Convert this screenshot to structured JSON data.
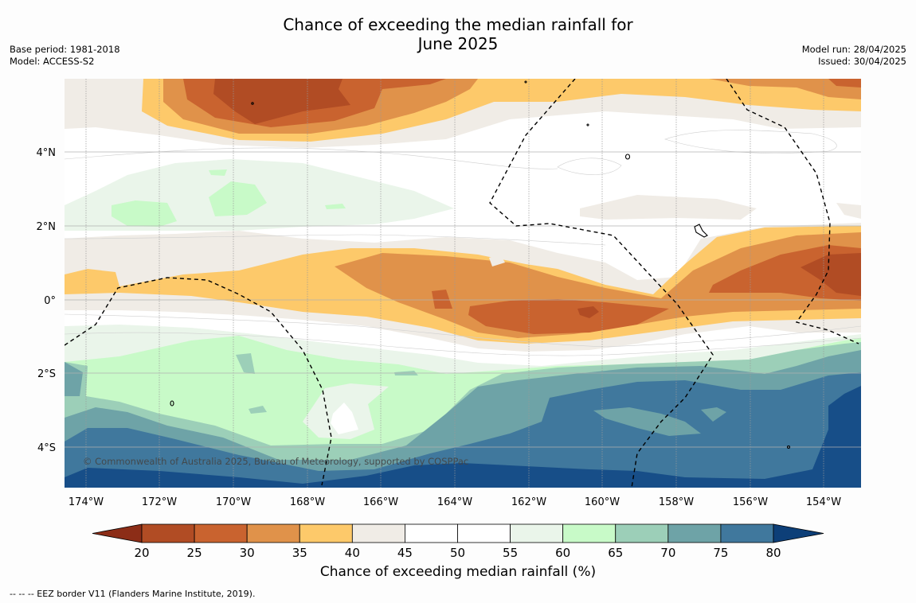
{
  "title_line1": "Chance of exceeding the median rainfall for",
  "title_line2": "June 2025",
  "base_period": "Base period: 1981-2018",
  "model": "Model: ACCESS-S2",
  "model_run": "Model run: 28/04/2025",
  "issued": "Issued: 30/04/2025",
  "copyright": "© Commonwealth of Australia 2025, Bureau of Meteorology, supported by COSPPac",
  "lon_labels": [
    "174°W",
    "172°W",
    "170°W",
    "168°W",
    "166°W",
    "164°W",
    "162°W",
    "160°W",
    "158°W",
    "156°W",
    "154°W"
  ],
  "lat_labels": [
    "4°N",
    "2°N",
    "0°",
    "2°S",
    "4°S"
  ],
  "colorbar": {
    "ticks": [
      "20",
      "25",
      "30",
      "35",
      "40",
      "45",
      "50",
      "55",
      "60",
      "65",
      "70",
      "75",
      "80"
    ],
    "colors": [
      "#b14c24",
      "#c9632f",
      "#e0924a",
      "#fdc96a",
      "#f0ece6",
      "#ffffff",
      "#ffffff",
      "#eaf5ea",
      "#c8fac8",
      "#9ccfb8",
      "#6ea3a7",
      "#40789d",
      "#174e88"
    ],
    "low_color": "#8c2d17",
    "high_color": "#0d3f78",
    "label": "Chance of exceeding median rainfall (%)"
  },
  "footer": "-- -- -- EEZ border V11 (Flanders Marine Institute, 2019)."
}
